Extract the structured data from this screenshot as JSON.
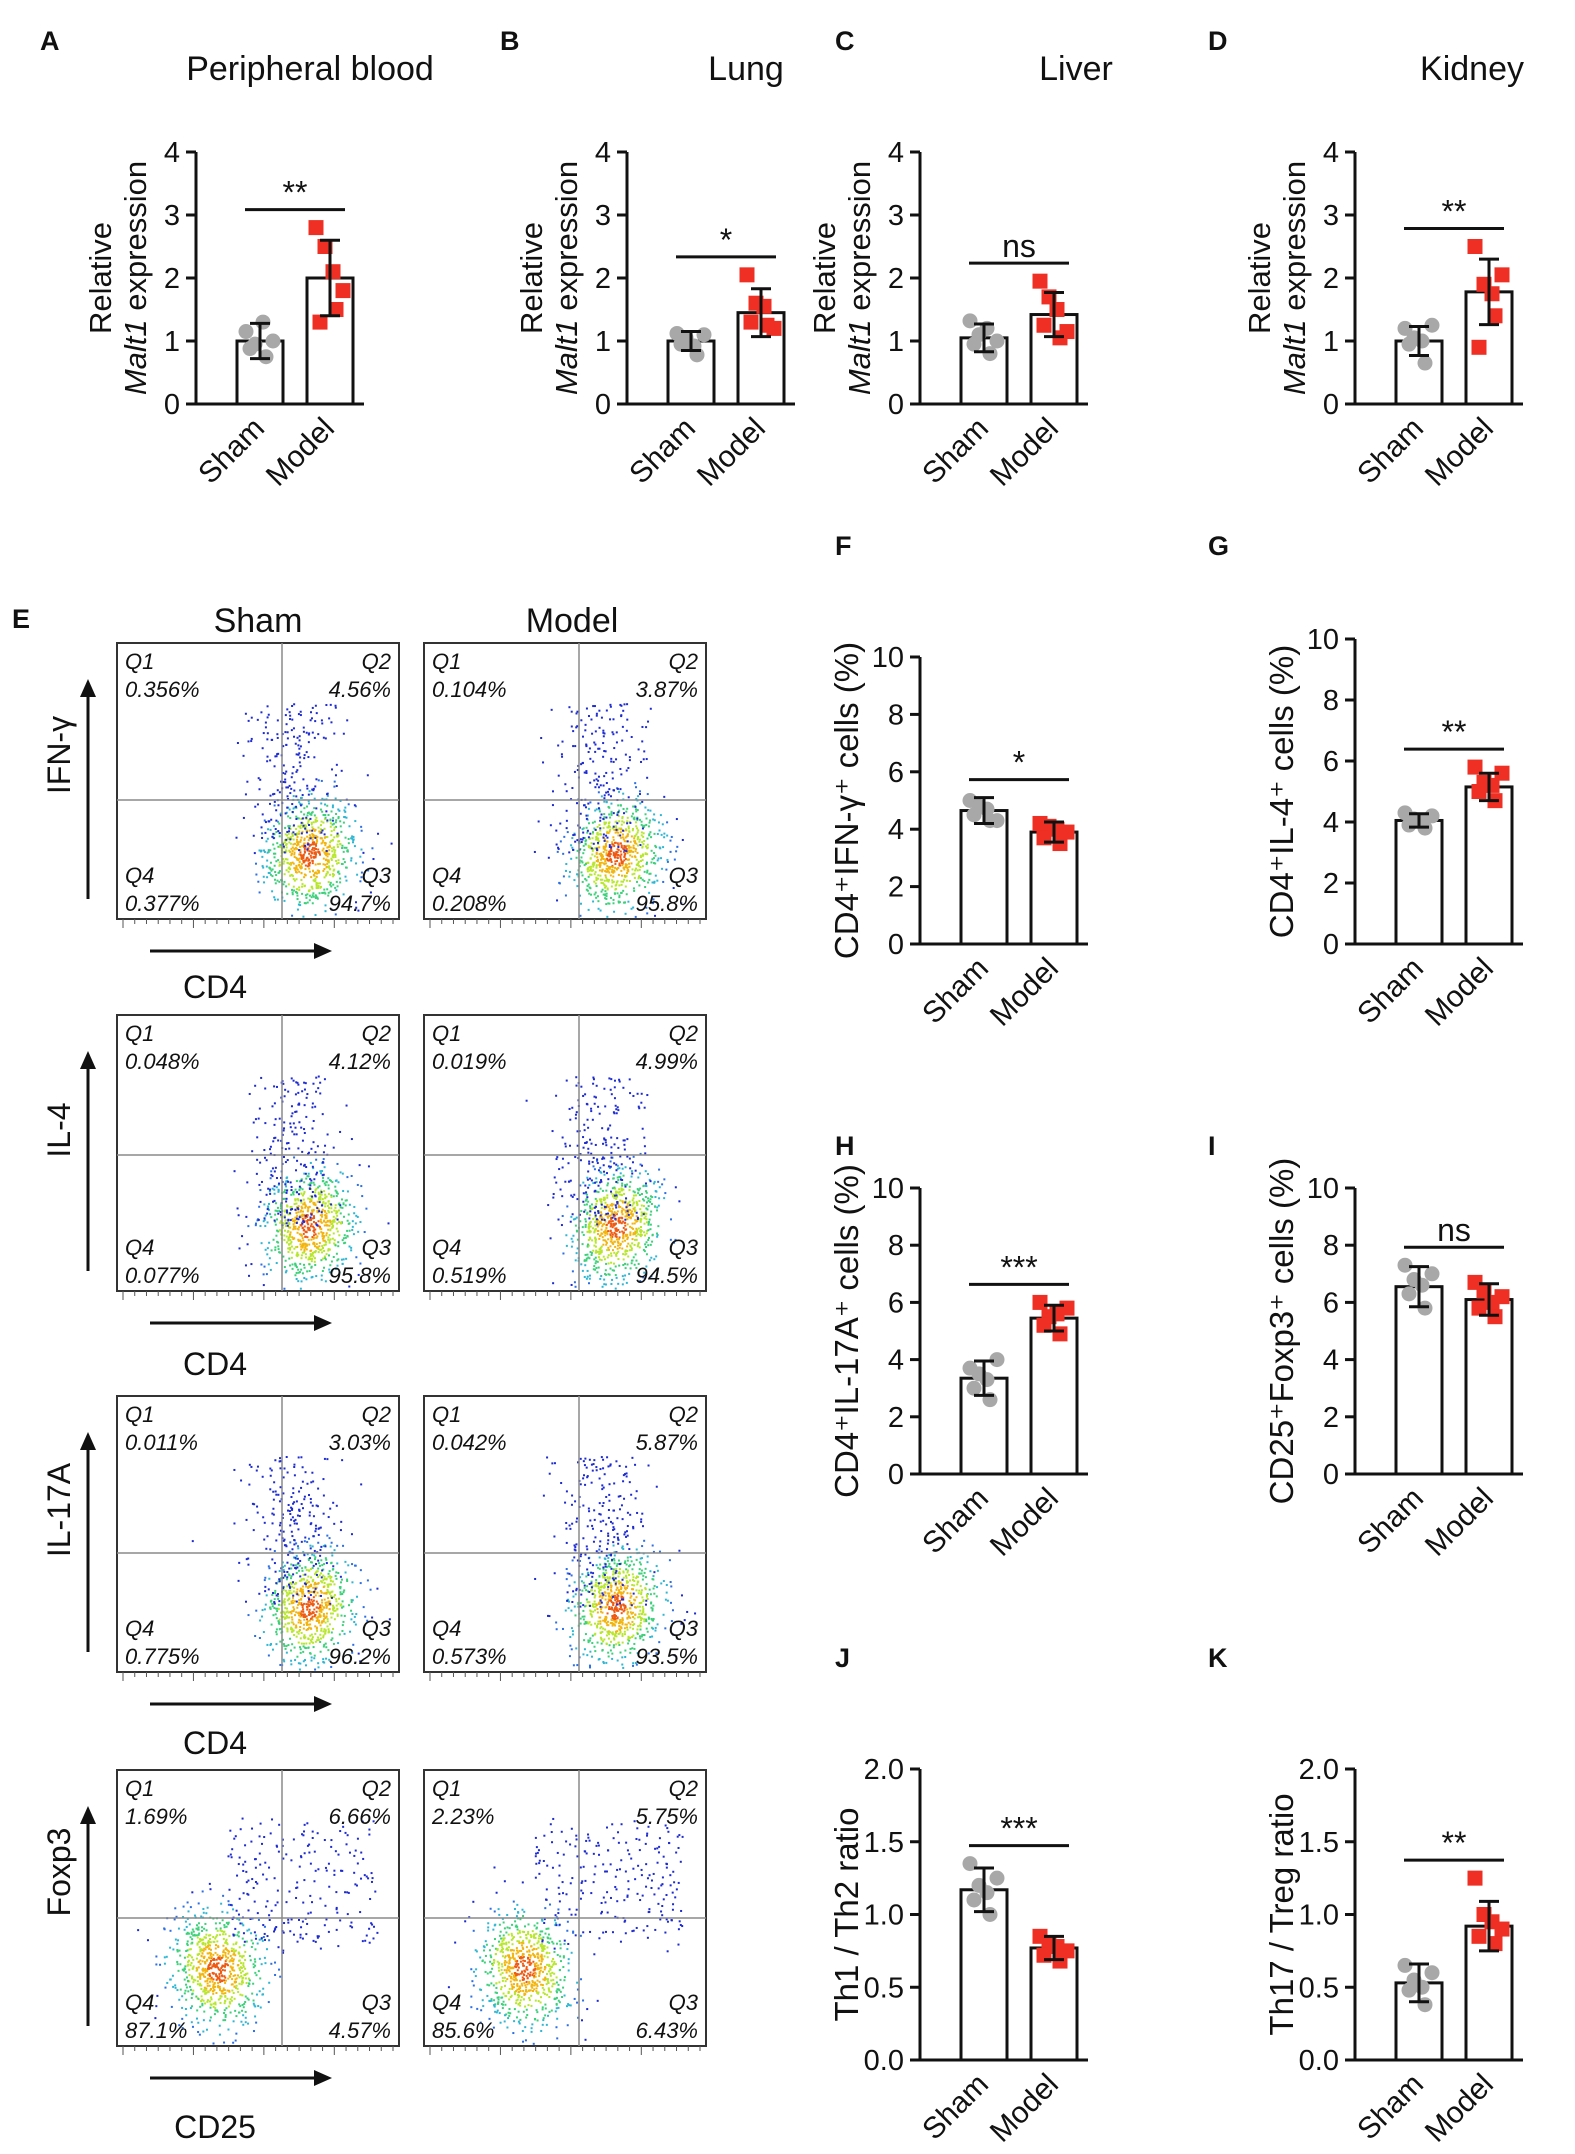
{
  "colors": {
    "sham": "#a8a8a8",
    "model": "#ef2f23",
    "axis": "#111111",
    "quadline": "#8a8a8a"
  },
  "group_labels": [
    "Sham",
    "Model"
  ],
  "chart_data": [
    {
      "id": "A",
      "type": "bar",
      "title": "Peripheral blood",
      "ylabel": "Relative",
      "ylabel_italic": "Malt1",
      "ylabel_rest": " expression",
      "ylim": [
        0,
        4
      ],
      "ticks": [
        "0",
        "1",
        "2",
        "3",
        "4"
      ],
      "categories": [
        "Sham",
        "Model"
      ],
      "sig": "**",
      "series": [
        {
          "name": "Sham",
          "mean": 1.0,
          "sd": 0.28,
          "points": [
            1.15,
            0.95,
            0.75,
            0.88,
            1.3,
            1.0
          ]
        },
        {
          "name": "Model",
          "mean": 2.0,
          "sd": 0.6,
          "points": [
            2.8,
            2.5,
            1.5,
            1.3,
            2.1,
            1.8
          ]
        }
      ]
    },
    {
      "id": "B",
      "type": "bar",
      "title": "Lung",
      "ylabel": "Relative",
      "ylabel_italic": "Malt1",
      "ylabel_rest": " expression",
      "ylim": [
        0,
        4
      ],
      "ticks": [
        "0",
        "1",
        "2",
        "3",
        "4"
      ],
      "categories": [
        "Sham",
        "Model"
      ],
      "sig": "*",
      "series": [
        {
          "name": "Sham",
          "mean": 1.0,
          "sd": 0.15,
          "points": [
            1.12,
            1.05,
            0.78,
            0.95,
            0.92,
            1.1
          ]
        },
        {
          "name": "Model",
          "mean": 1.45,
          "sd": 0.38,
          "points": [
            2.05,
            1.6,
            1.25,
            1.3,
            1.55,
            1.2
          ]
        }
      ]
    },
    {
      "id": "C",
      "type": "bar",
      "title": "Liver",
      "ylabel": "Relative",
      "ylabel_italic": "Malt1",
      "ylabel_rest": " expression",
      "ylim": [
        0,
        4
      ],
      "ticks": [
        "0",
        "1",
        "2",
        "3",
        "4"
      ],
      "categories": [
        "Sham",
        "Model"
      ],
      "sig": "ns",
      "series": [
        {
          "name": "Sham",
          "mean": 1.05,
          "sd": 0.22,
          "points": [
            1.32,
            1.1,
            0.8,
            0.95,
            1.2,
            1.0
          ]
        },
        {
          "name": "Model",
          "mean": 1.42,
          "sd": 0.35,
          "points": [
            1.95,
            1.7,
            1.05,
            1.25,
            1.5,
            1.15
          ]
        }
      ]
    },
    {
      "id": "D",
      "type": "bar",
      "title": "Kidney",
      "ylabel": "Relative",
      "ylabel_italic": "Malt1",
      "ylabel_rest": " expression",
      "ylim": [
        0,
        4
      ],
      "ticks": [
        "0",
        "1",
        "2",
        "3",
        "4"
      ],
      "categories": [
        "Sham",
        "Model"
      ],
      "sig": "**",
      "series": [
        {
          "name": "Sham",
          "mean": 1.0,
          "sd": 0.23,
          "points": [
            1.2,
            1.05,
            0.65,
            0.95,
            1.0,
            1.25
          ]
        },
        {
          "name": "Model",
          "mean": 1.78,
          "sd": 0.52,
          "points": [
            2.5,
            1.9,
            1.4,
            0.9,
            1.75,
            2.05
          ]
        }
      ]
    },
    {
      "id": "F",
      "type": "bar",
      "title": "",
      "ylabel": "CD4⁺IFN-γ⁺ cells (%)",
      "ylim": [
        0,
        10
      ],
      "ticks": [
        "0",
        "2",
        "4",
        "6",
        "8",
        "10"
      ],
      "categories": [
        "Sham",
        "Model"
      ],
      "sig": "*",
      "series": [
        {
          "name": "Sham",
          "mean": 4.65,
          "sd": 0.45,
          "points": [
            5.0,
            4.8,
            4.3,
            4.5,
            4.7,
            4.3
          ]
        },
        {
          "name": "Model",
          "mean": 3.9,
          "sd": 0.35,
          "points": [
            4.2,
            4.1,
            3.5,
            3.7,
            4.0,
            3.9
          ]
        }
      ]
    },
    {
      "id": "G",
      "type": "bar",
      "title": "",
      "ylabel": "CD4⁺IL-4⁺ cells (%)",
      "ylim": [
        0,
        10
      ],
      "ticks": [
        "0",
        "2",
        "4",
        "6",
        "8",
        "10"
      ],
      "categories": [
        "Sham",
        "Model"
      ],
      "sig": "**",
      "series": [
        {
          "name": "Sham",
          "mean": 4.05,
          "sd": 0.22,
          "points": [
            4.3,
            4.1,
            3.8,
            3.9,
            4.0,
            4.2
          ]
        },
        {
          "name": "Model",
          "mean": 5.15,
          "sd": 0.45,
          "points": [
            5.8,
            5.3,
            4.7,
            5.0,
            5.2,
            5.6
          ]
        }
      ]
    },
    {
      "id": "H",
      "type": "bar",
      "title": "",
      "ylabel": "CD4⁺IL-17A⁺ cells (%)",
      "ylim": [
        0,
        10
      ],
      "ticks": [
        "0",
        "2",
        "4",
        "6",
        "8",
        "10"
      ],
      "categories": [
        "Sham",
        "Model"
      ],
      "sig": "***",
      "series": [
        {
          "name": "Sham",
          "mean": 3.35,
          "sd": 0.6,
          "points": [
            3.7,
            3.5,
            2.6,
            3.0,
            3.3,
            4.0
          ]
        },
        {
          "name": "Model",
          "mean": 5.45,
          "sd": 0.45,
          "points": [
            6.0,
            5.5,
            4.9,
            5.2,
            5.6,
            5.8
          ]
        }
      ]
    },
    {
      "id": "I",
      "type": "bar",
      "title": "",
      "ylabel": "CD25⁺Foxp3⁺ cells (%)",
      "ylim": [
        0,
        10
      ],
      "ticks": [
        "0",
        "2",
        "4",
        "6",
        "8",
        "10"
      ],
      "categories": [
        "Sham",
        "Model"
      ],
      "sig": "ns",
      "series": [
        {
          "name": "Sham",
          "mean": 6.55,
          "sd": 0.7,
          "points": [
            7.3,
            6.8,
            5.8,
            6.3,
            6.6,
            7.0
          ]
        },
        {
          "name": "Model",
          "mean": 6.1,
          "sd": 0.55,
          "points": [
            6.7,
            6.4,
            5.5,
            5.8,
            6.0,
            6.2
          ]
        }
      ]
    },
    {
      "id": "J",
      "type": "bar",
      "title": "",
      "ylabel": "Th1 / Th2 ratio",
      "ylim": [
        0,
        2
      ],
      "ticks": [
        "0.0",
        "0.5",
        "1.0",
        "1.5",
        "2.0"
      ],
      "categories": [
        "Sham",
        "Model"
      ],
      "sig": "***",
      "series": [
        {
          "name": "Sham",
          "mean": 1.17,
          "sd": 0.15,
          "points": [
            1.35,
            1.2,
            1.0,
            1.1,
            1.15,
            1.25
          ]
        },
        {
          "name": "Model",
          "mean": 0.77,
          "sd": 0.08,
          "points": [
            0.85,
            0.8,
            0.68,
            0.72,
            0.78,
            0.75
          ]
        }
      ]
    },
    {
      "id": "K",
      "type": "bar",
      "title": "",
      "ylabel": "Th17 / Treg ratio",
      "ylim": [
        0,
        2
      ],
      "ticks": [
        "0.0",
        "0.5",
        "1.0",
        "1.5",
        "2.0"
      ],
      "categories": [
        "Sham",
        "Model"
      ],
      "sig": "**",
      "series": [
        {
          "name": "Sham",
          "mean": 0.53,
          "sd": 0.13,
          "points": [
            0.65,
            0.55,
            0.38,
            0.48,
            0.5,
            0.6
          ]
        },
        {
          "name": "Model",
          "mean": 0.92,
          "sd": 0.17,
          "points": [
            1.25,
            1.0,
            0.8,
            0.85,
            0.95,
            0.9
          ]
        }
      ]
    }
  ],
  "flow": {
    "panel_label": "E",
    "columns": [
      "Sham",
      "Model"
    ],
    "rows": [
      {
        "ylabel": "IFN-γ",
        "xlabel": "CD4",
        "plots": [
          {
            "q1": "0.356%",
            "q2": "4.56%",
            "q3": "94.7%",
            "q4": "0.377%"
          },
          {
            "q1": "0.104%",
            "q2": "3.87%",
            "q3": "95.8%",
            "q4": "0.208%"
          }
        ]
      },
      {
        "ylabel": "IL-4",
        "xlabel": "CD4",
        "plots": [
          {
            "q1": "0.048%",
            "q2": "4.12%",
            "q3": "95.8%",
            "q4": "0.077%"
          },
          {
            "q1": "0.019%",
            "q2": "4.99%",
            "q3": "94.5%",
            "q4": "0.519%"
          }
        ]
      },
      {
        "ylabel": "IL-17A",
        "xlabel": "CD4",
        "plots": [
          {
            "q1": "0.011%",
            "q2": "3.03%",
            "q3": "96.2%",
            "q4": "0.775%"
          },
          {
            "q1": "0.042%",
            "q2": "5.87%",
            "q3": "93.5%",
            "q4": "0.573%"
          }
        ]
      },
      {
        "ylabel": "Foxp3",
        "xlabel": "CD25",
        "plots": [
          {
            "q1": "1.69%",
            "q2": "6.66%",
            "q3": "4.57%",
            "q4": "87.1%"
          },
          {
            "q1": "2.23%",
            "q2": "5.75%",
            "q3": "6.43%",
            "q4": "85.6%"
          }
        ]
      }
    ],
    "quadrant_names": [
      "Q1",
      "Q2",
      "Q3",
      "Q4"
    ]
  }
}
